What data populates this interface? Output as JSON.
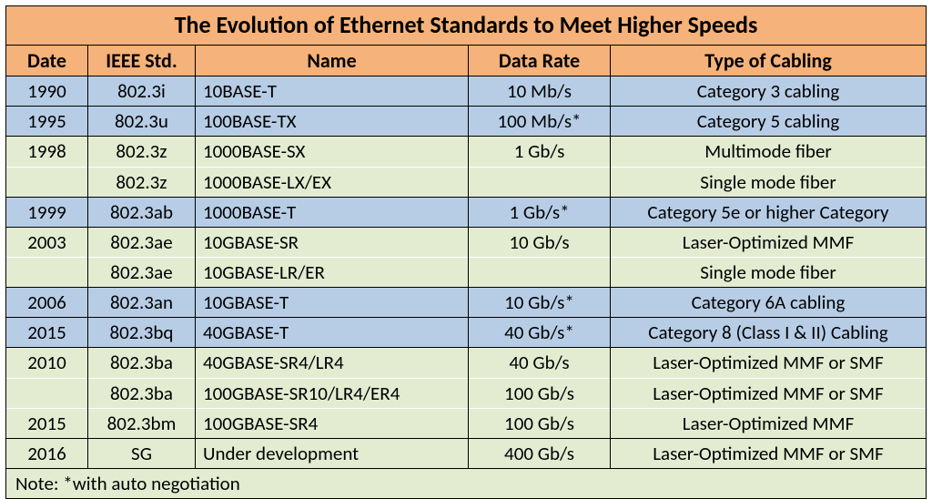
{
  "title": "The Evolution of Ethernet Standards to Meet Higher Speeds",
  "headers": {
    "date": "Date",
    "std": "IEEE Std.",
    "name": "Name",
    "rate": "Data Rate",
    "cabling": "Type of Cabling"
  },
  "rows": [
    {
      "grp": "blue",
      "date": "1990",
      "std": "802.3i",
      "name": "10BASE-T",
      "rate": "10 Mb/s",
      "cab": "Category 3 cabling",
      "topOpen": false,
      "botOpen": false
    },
    {
      "grp": "blue",
      "date": "1995",
      "std": "802.3u",
      "name": "100BASE-TX",
      "rate": "100 Mb/s*",
      "cab": "Category 5 cabling",
      "topOpen": false,
      "botOpen": false
    },
    {
      "grp": "green",
      "date": "1998",
      "std": "802.3z",
      "name": "1000BASE-SX",
      "rate": "1 Gb/s",
      "cab": "Multimode fiber",
      "topOpen": false,
      "botOpen": true
    },
    {
      "grp": "green",
      "date": "",
      "std": "802.3z",
      "name": "1000BASE-LX/EX",
      "rate": "",
      "cab": "Single mode fiber",
      "topOpen": true,
      "botOpen": false
    },
    {
      "grp": "blue",
      "date": "1999",
      "std": "802.3ab",
      "name": "1000BASE-T",
      "rate": "1 Gb/s*",
      "cab": "Category 5e or higher Category",
      "topOpen": false,
      "botOpen": false
    },
    {
      "grp": "green",
      "date": "2003",
      "std": "802.3ae",
      "name": "10GBASE-SR",
      "rate": "10 Gb/s",
      "cab": "Laser-Optimized MMF",
      "topOpen": false,
      "botOpen": true
    },
    {
      "grp": "green",
      "date": "",
      "std": "802.3ae",
      "name": "10GBASE-LR/ER",
      "rate": "",
      "cab": "Single mode fiber",
      "topOpen": true,
      "botOpen": false
    },
    {
      "grp": "blue",
      "date": "2006",
      "std": "802.3an",
      "name": "10GBASE-T",
      "rate": "10 Gb/s*",
      "cab": "Category 6A cabling",
      "topOpen": false,
      "botOpen": false
    },
    {
      "grp": "blue",
      "date": "2015",
      "std": "802.3bq",
      "name": "40GBASE-T",
      "rate": "40 Gb/s*",
      "cab": "Category 8 (Class I & II) Cabling",
      "topOpen": false,
      "botOpen": false
    },
    {
      "grp": "green",
      "date": "2010",
      "std": "802.3ba",
      "name": "40GBASE-SR4/LR4",
      "rate": "40 Gb/s",
      "cab": "Laser-Optimized MMF or SMF",
      "topOpen": false,
      "botOpen": true
    },
    {
      "grp": "green",
      "date": "",
      "std": "802.3ba",
      "name": "100GBASE-SR10/LR4/ER4",
      "rate": "100 Gb/s",
      "cab": "Laser-Optimized MMF or SMF",
      "topOpen": true,
      "botOpen": true
    },
    {
      "grp": "green",
      "date": "2015",
      "std": "802.3bm",
      "name": "100GBASE-SR4",
      "rate": "100 Gb/s",
      "cab": "Laser-Optimized MMF",
      "topOpen": true,
      "botOpen": false
    },
    {
      "grp": "green",
      "date": "2016",
      "std": "SG",
      "name": "Under development",
      "rate": "400 Gb/s",
      "cab": "Laser-Optimized MMF or SMF",
      "topOpen": false,
      "botOpen": false
    }
  ],
  "note": "Note:  *with auto negotiation",
  "colors": {
    "header_bg": "#f5b27a",
    "blue_bg": "#b7cde6",
    "green_bg": "#e3ecd1",
    "border": "#000000"
  }
}
